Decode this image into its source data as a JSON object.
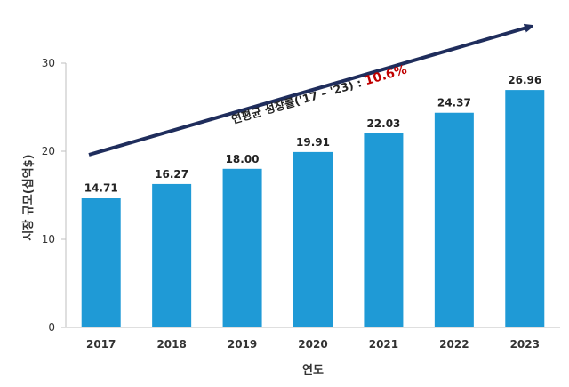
{
  "chart_data": {
    "type": "bar",
    "categories": [
      "2017",
      "2018",
      "2019",
      "2020",
      "2021",
      "2022",
      "2023"
    ],
    "values": [
      14.71,
      16.27,
      18.0,
      19.91,
      22.03,
      24.37,
      26.96
    ],
    "value_labels": [
      "14.71",
      "16.27",
      "18.00",
      "19.91",
      "22.03",
      "24.37",
      "26.96"
    ],
    "xlabel": "연도",
    "ylabel": "시장 규모(십억$)",
    "ylim": [
      0,
      30
    ],
    "yticks": [
      0,
      10,
      20,
      30
    ],
    "grid": false,
    "bar_color": "#1f9ad6",
    "annotation": {
      "text": "연평균 성장률('17 – '23) : ",
      "value": "10.6%",
      "arrow_color": "#1f2d5c",
      "value_color": "#c00000"
    }
  }
}
